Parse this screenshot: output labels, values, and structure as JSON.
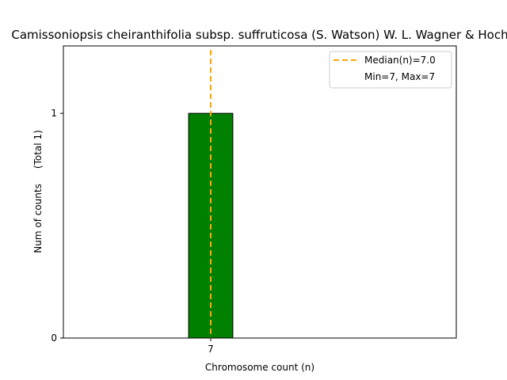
{
  "chart_data": {
    "type": "bar",
    "title": "Camissoniopsis cheiranthifolia subsp. suffruticosa (S. Watson) W. L. Wagner & Hoch",
    "xlabel": "Chromosome count (n)",
    "ylabel": "Num of counts     (Total 1)",
    "categories": [
      "7"
    ],
    "values": [
      1
    ],
    "x_ticks": [
      "7"
    ],
    "y_ticks": [
      "0",
      "1"
    ],
    "xlim": [
      5.5,
      9.5
    ],
    "ylim": [
      0,
      1.3
    ],
    "grid": false,
    "bar_color": "#008000",
    "median": 7.0,
    "median_color": "#FFA500",
    "legend": {
      "position": "top-right",
      "entries": [
        "Median(n)=7.0",
        "Min=7, Max=7"
      ]
    }
  }
}
